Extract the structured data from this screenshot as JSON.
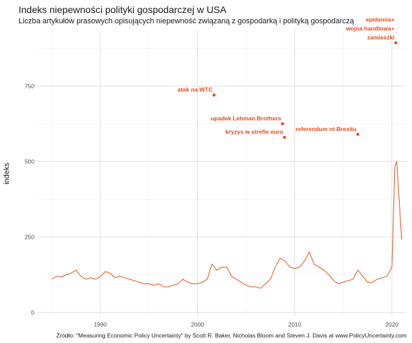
{
  "header": {
    "title": "Indeks niepewności polityki gospodarczej w USA",
    "subtitle": "Liczba artykułów prasowych opisujących niepewność związaną z gospodarką i polityką gospodarczą"
  },
  "caption": "Źródło:  \"Measuring Economic Policy Uncertainty\" by Scott R. Baker, Nicholas Bloom and Steven J. Davis at www.PolicyUncertainty.com",
  "colors": {
    "line": "#e84e1b",
    "annotation": "#e34a1c",
    "grid": "#ebebeb",
    "background": "#ffffff"
  },
  "chart_data": {
    "type": "line",
    "title": "Indeks niepewności polityki gospodarczej w USA",
    "subtitle": "Liczba artykułów prasowych opisujących niepewność związaną z gospodarką i polityką gospodarczą",
    "xlabel": "",
    "ylabel": "indeks",
    "xlim": [
      1983.5,
      2021.5
    ],
    "ylim": [
      -15,
      935
    ],
    "x_ticks": [
      1990,
      2000,
      2010,
      2020
    ],
    "y_ticks": [
      0,
      250,
      500,
      750
    ],
    "grid": true,
    "series": [
      {
        "x": [
          1985.0,
          1985.5,
          1986.0,
          1986.5,
          1987.0,
          1987.5,
          1988.0,
          1988.5,
          1989.0,
          1989.5,
          1990.0,
          1990.5,
          1991.0,
          1991.5,
          1992.0,
          1992.5,
          1993.0,
          1993.5,
          1994.0,
          1994.5,
          1995.0,
          1995.5,
          1996.0,
          1996.5,
          1997.0,
          1997.5,
          1998.0,
          1998.5,
          1999.0,
          1999.5,
          2000.0,
          2000.5,
          2001.0,
          2001.5,
          2002.0,
          2002.5,
          2003.0,
          2003.5,
          2004.0,
          2004.5,
          2005.0,
          2005.5,
          2006.0,
          2006.5,
          2007.0,
          2007.5,
          2008.0,
          2008.5,
          2009.0,
          2009.5,
          2010.0,
          2010.5,
          2011.0,
          2011.5,
          2012.0,
          2012.5,
          2013.0,
          2013.5,
          2014.0,
          2014.5,
          2015.0,
          2015.5,
          2016.0,
          2016.5,
          2017.0,
          2017.5,
          2018.0,
          2018.5,
          2019.0,
          2019.5,
          2020.0,
          2020.3,
          2020.5,
          2021.0
        ],
        "y": [
          110,
          120,
          118,
          125,
          130,
          140,
          120,
          110,
          115,
          110,
          118,
          135,
          130,
          115,
          120,
          115,
          110,
          105,
          100,
          95,
          95,
          90,
          95,
          85,
          85,
          90,
          95,
          110,
          100,
          95,
          95,
          100,
          110,
          160,
          140,
          150,
          150,
          120,
          110,
          100,
          90,
          85,
          85,
          80,
          95,
          110,
          150,
          180,
          170,
          150,
          145,
          150,
          170,
          200,
          160,
          150,
          140,
          125,
          105,
          95,
          100,
          105,
          110,
          140,
          120,
          100,
          100,
          110,
          115,
          120,
          150,
          480,
          500,
          240
        ]
      }
    ],
    "annotations": [
      {
        "label": "atak na WTC",
        "x": 2001.7,
        "y": 720
      },
      {
        "label": "upadek Lehman Brothers",
        "x": 2008.75,
        "y": 625
      },
      {
        "label": "kryzys w strefie euro",
        "x": 2008.95,
        "y": 580
      },
      {
        "label": "referendum nt Brexitu",
        "x": 2016.5,
        "y": 590
      },
      {
        "label": "zamieszki",
        "x": 2020.4,
        "y": 893
      },
      {
        "label": "wojna handlowa+",
        "x": 2020.4,
        "y": 893
      },
      {
        "label": "epidemia+",
        "x": 2020.4,
        "y": 893
      }
    ]
  }
}
